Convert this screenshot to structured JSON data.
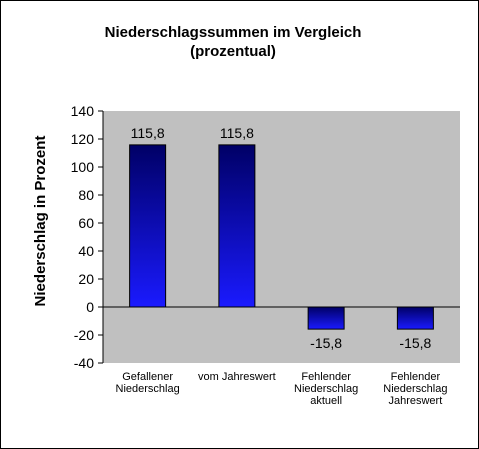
{
  "chart_data": {
    "type": "bar",
    "title_lines": [
      "Niederschlagssummen  im Vergleich",
      "(prozentual)"
    ],
    "ylabel": "Niederschlag in Prozent",
    "xlabel": "",
    "categories": [
      [
        "Gefallener",
        "Niederschlag"
      ],
      [
        "vom Jahreswert"
      ],
      [
        "Fehlender",
        "Niederschlag",
        "aktuell"
      ],
      [
        "Fehlender",
        "Niederschlag",
        "Jahreswert"
      ]
    ],
    "values": [
      115.8,
      115.8,
      -15.8,
      -15.8
    ],
    "data_labels": [
      "115,8",
      "115,8",
      "-15,8",
      "-15,8"
    ],
    "ylim": [
      -40,
      140
    ],
    "yticks": [
      -40,
      -20,
      0,
      20,
      40,
      60,
      80,
      100,
      120,
      140
    ],
    "grid": false,
    "legend": "none",
    "colors": {
      "plot_background": "#c0c0c0",
      "bar_top": "#000066",
      "bar_bottom": "#1a1aff",
      "bar_border": "#000000"
    }
  }
}
